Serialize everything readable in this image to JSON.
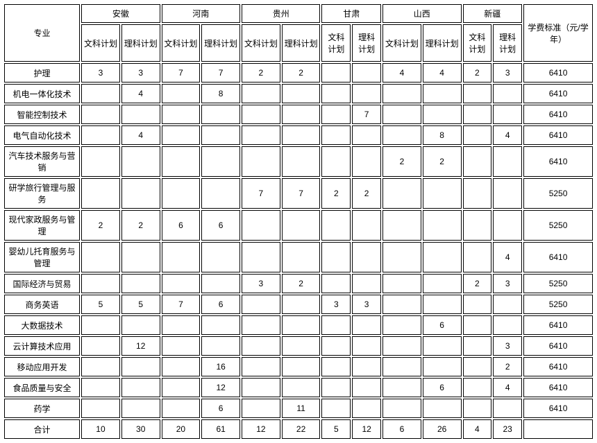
{
  "columns": {
    "major": "专业",
    "provinces": [
      "安徽",
      "河南",
      "贵州",
      "甘肃",
      "山西",
      "新疆"
    ],
    "sub": [
      "文科计划",
      "理科计划"
    ],
    "short_sub": [
      "文科\n计划",
      "理科\n计划"
    ],
    "tuition": "学费标准（元/学年）"
  },
  "col_widths": {
    "major": 94,
    "plan": 48,
    "plan_narrow": 36,
    "tuition": 86
  },
  "rows": [
    {
      "label": "护理",
      "cells": [
        "3",
        "3",
        "7",
        "7",
        "2",
        "2",
        "",
        "",
        "4",
        "4",
        "2",
        "3"
      ],
      "tuition": "6410"
    },
    {
      "label": "机电一体化技术",
      "cells": [
        "",
        "4",
        "",
        "8",
        "",
        "",
        "",
        "",
        "",
        "",
        "",
        ""
      ],
      "tuition": "6410"
    },
    {
      "label": "智能控制技术",
      "cells": [
        "",
        "",
        "",
        "",
        "",
        "",
        "",
        "7",
        "",
        "",
        "",
        ""
      ],
      "tuition": "6410"
    },
    {
      "label": "电气自动化技术",
      "cells": [
        "",
        "4",
        "",
        "",
        "",
        "",
        "",
        "",
        "",
        "8",
        "",
        "4"
      ],
      "tuition": "6410"
    },
    {
      "label": "汽车技术服务与营销",
      "cells": [
        "",
        "",
        "",
        "",
        "",
        "",
        "",
        "",
        "2",
        "2",
        "",
        ""
      ],
      "tuition": "6410",
      "tall": true
    },
    {
      "label": "研学旅行管理与服务",
      "cells": [
        "",
        "",
        "",
        "",
        "7",
        "7",
        "2",
        "2",
        "",
        "",
        "",
        ""
      ],
      "tuition": "5250",
      "tall": true
    },
    {
      "label": "现代家政服务与管理",
      "cells": [
        "2",
        "2",
        "6",
        "6",
        "",
        "",
        "",
        "",
        "",
        "",
        "",
        ""
      ],
      "tuition": "5250",
      "tall": true
    },
    {
      "label": "婴幼儿托育服务与管理",
      "cells": [
        "",
        "",
        "",
        "",
        "",
        "",
        "",
        "",
        "",
        "",
        "",
        "4"
      ],
      "tuition": "6410",
      "tall": true
    },
    {
      "label": "国际经济与贸易",
      "cells": [
        "",
        "",
        "",
        "",
        "3",
        "2",
        "",
        "",
        "",
        "",
        "2",
        "3"
      ],
      "tuition": "5250"
    },
    {
      "label": "商务英语",
      "cells": [
        "5",
        "5",
        "7",
        "6",
        "",
        "",
        "3",
        "3",
        "",
        "",
        "",
        ""
      ],
      "tuition": "5250"
    },
    {
      "label": "大数据技术",
      "cells": [
        "",
        "",
        "",
        "",
        "",
        "",
        "",
        "",
        "",
        "6",
        "",
        ""
      ],
      "tuition": "6410"
    },
    {
      "label": "云计算技术应用",
      "cells": [
        "",
        "12",
        "",
        "",
        "",
        "",
        "",
        "",
        "",
        "",
        "",
        "3"
      ],
      "tuition": "6410"
    },
    {
      "label": "移动应用开发",
      "cells": [
        "",
        "",
        "",
        "16",
        "",
        "",
        "",
        "",
        "",
        "",
        "",
        "2"
      ],
      "tuition": "6410"
    },
    {
      "label": "食品质量与安全",
      "cells": [
        "",
        "",
        "",
        "12",
        "",
        "",
        "",
        "",
        "",
        "6",
        "",
        "4"
      ],
      "tuition": "6410"
    },
    {
      "label": "药学",
      "cells": [
        "",
        "",
        "",
        "6",
        "",
        "11",
        "",
        "",
        "",
        "",
        "",
        ""
      ],
      "tuition": "6410"
    },
    {
      "label": "合计",
      "cells": [
        "10",
        "30",
        "20",
        "61",
        "12",
        "22",
        "5",
        "12",
        "6",
        "26",
        "4",
        "23"
      ],
      "tuition": ""
    }
  ],
  "narrow_province_indices": [
    3,
    5
  ],
  "style": {
    "border_color": "#000000",
    "bg": "#ffffff",
    "font_size": 12
  }
}
